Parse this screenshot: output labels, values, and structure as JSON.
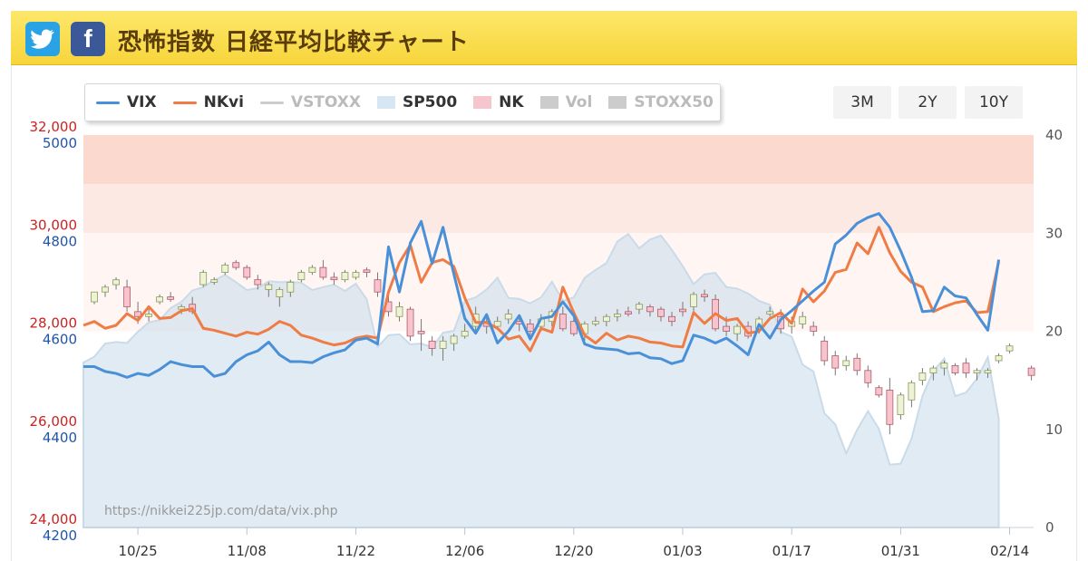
{
  "header": {
    "twitter_icon": "twitter-bird-icon",
    "facebook_icon": "facebook-f-icon",
    "title": "恐怖指数 日経平均比較チャート"
  },
  "range_buttons": [
    "3M",
    "2Y",
    "10Y"
  ],
  "legend": [
    {
      "label": "VIX",
      "color": "#4a90d9",
      "kind": "line",
      "active": true
    },
    {
      "label": "NKvi",
      "color": "#f07c45",
      "kind": "line",
      "active": true
    },
    {
      "label": "VSTOXX",
      "color": "#cccccc",
      "kind": "line",
      "active": false
    },
    {
      "label": "SP500",
      "color": "#d6e6f2",
      "kind": "box",
      "active": true
    },
    {
      "label": "NK",
      "color": "#f6c6cf",
      "kind": "box",
      "active": true
    },
    {
      "label": "Vol",
      "color": "#cccccc",
      "kind": "box",
      "active": false
    },
    {
      "label": "STOXX50",
      "color": "#cccccc",
      "kind": "box",
      "active": false
    }
  ],
  "chart_data": {
    "type": "line",
    "watermark": "https://nikkei225jp.com/data/vix.php",
    "x_ticks": [
      "10/25",
      "11/08",
      "11/22",
      "12/06",
      "12/20",
      "01/03",
      "01/17",
      "01/31",
      "02/14"
    ],
    "x_tick_positions": [
      5,
      15,
      25,
      35,
      45,
      55,
      65,
      75,
      85
    ],
    "x_range": [
      0,
      85
    ],
    "left_axis_nk": {
      "ticks": [
        "24,000",
        "26,000",
        "28,000",
        "30,000",
        "32,000"
      ],
      "values": [
        24000,
        26000,
        28000,
        30000,
        32000
      ],
      "color": "#cc2222"
    },
    "left_axis_sp500": {
      "ticks": [
        "4200",
        "4400",
        "4600",
        "4800",
        "5000"
      ],
      "values": [
        4200,
        4400,
        4600,
        4800,
        5000
      ],
      "color": "#2255aa"
    },
    "right_axis": {
      "ticks": [
        "0",
        "10",
        "20",
        "30",
        "40"
      ],
      "values": [
        0,
        10,
        20,
        30,
        40
      ],
      "ylim": [
        0,
        40
      ]
    },
    "zones": [
      {
        "from": 35,
        "to": 40,
        "color": "#fcd9cf"
      },
      {
        "from": 30,
        "to": 35,
        "color": "#fde9e3"
      },
      {
        "from": 20,
        "to": 30,
        "color": "#fff6f3"
      }
    ],
    "series": [
      {
        "name": "VIX",
        "color": "#4a90d9",
        "values": [
          16.4,
          16.4,
          15.9,
          15.7,
          15.3,
          15.7,
          15.5,
          16.1,
          16.9,
          16.6,
          16.4,
          16.4,
          15.4,
          15.7,
          16.9,
          17.6,
          18.0,
          18.9,
          17.6,
          16.9,
          16.9,
          16.8,
          17.4,
          17.8,
          18.1,
          19.1,
          19.3,
          18.7,
          28.6,
          24.0,
          29.0,
          31.2,
          26.9,
          30.6,
          25.8,
          21.3,
          19.8,
          21.7,
          18.8,
          20.0,
          21.6,
          19.2,
          21.3,
          21.5,
          23.0,
          21.6,
          18.7,
          18.3,
          18.2,
          18.1,
          17.7,
          17.8,
          17.3,
          17.2,
          16.7,
          17.0,
          19.6,
          19.3,
          18.8,
          19.3,
          18.5,
          17.6,
          20.7,
          19.3,
          21.2,
          22.1,
          23.1,
          24.1,
          25.0,
          28.9,
          29.8,
          31.0,
          31.6,
          32.0,
          30.6,
          28.2,
          25.5,
          22.0,
          22.1,
          24.5,
          23.6,
          23.4,
          21.7,
          20.1,
          27.3
        ]
      },
      {
        "name": "NKvi",
        "color": "#f07c45",
        "values": [
          20.6,
          21.0,
          20.3,
          20.6,
          21.8,
          21.1,
          22.5,
          21.3,
          21.4,
          22.1,
          22.3,
          20.3,
          20.1,
          19.8,
          19.5,
          19.9,
          19.7,
          20.2,
          21.0,
          20.6,
          19.6,
          19.3,
          18.9,
          18.6,
          18.8,
          19.3,
          19.5,
          19.3,
          24.0,
          27.0,
          28.8,
          25.0,
          27.0,
          27.3,
          26.6,
          23.4,
          20.9,
          20.9,
          20.3,
          19.2,
          19.5,
          18.0,
          20.3,
          19.9,
          24.5,
          21.9,
          19.6,
          18.8,
          19.8,
          19.1,
          19.5,
          19.3,
          18.9,
          18.8,
          18.5,
          18.4,
          21.9,
          20.8,
          21.8,
          21.1,
          21.3,
          19.8,
          20.0,
          21.3,
          21.9,
          20.8,
          24.3,
          23.0,
          24.1,
          26.0,
          26.3,
          29.0,
          27.9,
          30.6,
          28.0,
          26.1,
          25.0,
          24.5,
          22.0,
          22.5,
          22.9,
          23.1,
          21.9,
          22.0,
          27.1
        ]
      },
      {
        "name": "SP500",
        "color": "#dbe8f3",
        "values": [
          4536,
          4548,
          4575,
          4578,
          4576,
          4599,
          4618,
          4623,
          4647,
          4660,
          4683,
          4690,
          4704,
          4715,
          4700,
          4684,
          4688,
          4702,
          4700,
          4701,
          4699,
          4684,
          4690,
          4695,
          4682,
          4697,
          4665,
          4568,
          4592,
          4594,
          4573,
          4575,
          4567,
          4597,
          4601,
          4662,
          4669,
          4685,
          4709,
          4668,
          4666,
          4657,
          4669,
          4701,
          4662,
          4669,
          4709,
          4725,
          4739,
          4783,
          4798,
          4769,
          4787,
          4795,
          4766,
          4733,
          4696,
          4716,
          4719,
          4690,
          4687,
          4677,
          4662,
          4654,
          4599,
          4589,
          4532,
          4518,
          4433,
          4410,
          4351,
          4399,
          4437,
          4401,
          4328,
          4330,
          4381,
          4468,
          4519,
          4544,
          4468,
          4475,
          4503,
          4547,
          4422
        ]
      },
      {
        "name": "NK",
        "color": "#f6c6cf",
        "candles": [
          [
            1,
            28600,
            28800,
            28550,
            28800
          ],
          [
            2,
            28800,
            28950,
            28700,
            28900
          ],
          [
            3,
            28950,
            29100,
            28850,
            29050
          ],
          [
            4,
            28900,
            29050,
            28400,
            28500
          ],
          [
            5,
            28400,
            28600,
            28150,
            28300
          ],
          [
            6,
            28300,
            28500,
            28200,
            28350
          ],
          [
            7,
            28600,
            28750,
            28550,
            28700
          ],
          [
            8,
            28700,
            28800,
            28600,
            28650
          ],
          [
            9,
            28450,
            28550,
            28350,
            28500
          ],
          [
            10,
            28550,
            28700,
            28350,
            28400
          ],
          [
            11,
            28950,
            29250,
            28900,
            29200
          ],
          [
            12,
            29000,
            29100,
            28950,
            29050
          ],
          [
            13,
            29200,
            29400,
            29150,
            29350
          ],
          [
            14,
            29400,
            29450,
            29250,
            29300
          ],
          [
            15,
            29300,
            29350,
            29050,
            29100
          ],
          [
            16,
            29050,
            29150,
            28850,
            28950
          ],
          [
            17,
            28850,
            29000,
            28700,
            28950
          ],
          [
            18,
            28700,
            28900,
            28500,
            28850
          ],
          [
            19,
            28800,
            29050,
            28700,
            29000
          ],
          [
            20,
            29050,
            29250,
            29000,
            29200
          ],
          [
            21,
            29200,
            29350,
            29150,
            29300
          ],
          [
            22,
            29300,
            29450,
            29050,
            29100
          ],
          [
            23,
            29100,
            29200,
            28950,
            29050
          ],
          [
            24,
            29050,
            29250,
            29000,
            29200
          ],
          [
            25,
            29100,
            29250,
            29050,
            29200
          ],
          [
            26,
            29250,
            29300,
            29100,
            29200
          ],
          [
            27,
            29050,
            29200,
            28700,
            28800
          ],
          [
            28,
            28600,
            28750,
            28300,
            28400
          ],
          [
            29,
            28300,
            28600,
            28200,
            28500
          ],
          [
            30,
            28450,
            28500,
            27800,
            27900
          ],
          [
            31,
            28000,
            28250,
            27600,
            27950
          ],
          [
            32,
            27800,
            27900,
            27500,
            27650
          ],
          [
            33,
            27650,
            27900,
            27400,
            27800
          ],
          [
            34,
            27750,
            27950,
            27600,
            27900
          ],
          [
            35,
            27900,
            28150,
            27850,
            28000
          ],
          [
            36,
            28100,
            28500,
            28000,
            28350
          ],
          [
            37,
            28200,
            28350,
            27950,
            28100
          ],
          [
            38,
            28100,
            28300,
            28050,
            28200
          ],
          [
            39,
            28250,
            28450,
            28150,
            28350
          ],
          [
            40,
            28200,
            28300,
            28000,
            28150
          ],
          [
            41,
            28150,
            28250,
            27900,
            28000
          ],
          [
            42,
            28100,
            28350,
            28000,
            28250
          ],
          [
            43,
            28200,
            28450,
            28100,
            28400
          ],
          [
            44,
            28350,
            28500,
            28000,
            28050
          ],
          [
            45,
            28200,
            28300,
            27900,
            27950
          ],
          [
            46,
            27950,
            28200,
            27800,
            28150
          ],
          [
            47,
            28150,
            28300,
            28100,
            28200
          ],
          [
            48,
            28200,
            28350,
            28100,
            28300
          ],
          [
            49,
            28300,
            28450,
            28200,
            28350
          ],
          [
            50,
            28400,
            28500,
            28300,
            28350
          ],
          [
            51,
            28450,
            28600,
            28350,
            28550
          ],
          [
            52,
            28500,
            28550,
            28300,
            28400
          ],
          [
            53,
            28450,
            28500,
            28200,
            28300
          ],
          [
            54,
            28300,
            28400,
            28100,
            28200
          ],
          [
            55,
            28450,
            28600,
            28300,
            28400
          ],
          [
            56,
            28500,
            28800,
            28400,
            28750
          ],
          [
            57,
            28750,
            28850,
            28600,
            28700
          ],
          [
            58,
            28650,
            28750,
            28000,
            28050
          ],
          [
            59,
            28100,
            28300,
            27900,
            28000
          ],
          [
            60,
            27950,
            28150,
            27800,
            28100
          ],
          [
            61,
            28100,
            28200,
            27850,
            27900
          ],
          [
            62,
            28050,
            28300,
            27950,
            28250
          ],
          [
            63,
            28350,
            28500,
            28300,
            28400
          ],
          [
            64,
            28300,
            28450,
            27950,
            28050
          ],
          [
            65,
            28100,
            28300,
            27950,
            28200
          ],
          [
            66,
            28150,
            28400,
            28050,
            28300
          ],
          [
            67,
            28100,
            28200,
            27900,
            28000
          ],
          [
            68,
            27800,
            27900,
            27300,
            27400
          ],
          [
            69,
            27500,
            27600,
            27100,
            27250
          ],
          [
            70,
            27300,
            27500,
            27200,
            27400
          ],
          [
            71,
            27450,
            27550,
            27100,
            27200
          ],
          [
            72,
            27200,
            27300,
            26850,
            26950
          ],
          [
            73,
            26850,
            26900,
            26650,
            26700
          ],
          [
            74,
            26800,
            27050,
            25900,
            26100
          ],
          [
            75,
            26300,
            26750,
            26200,
            26700
          ],
          [
            76,
            26600,
            27000,
            26450,
            26950
          ],
          [
            77,
            27000,
            27250,
            26900,
            27150
          ],
          [
            78,
            27150,
            27300,
            27000,
            27250
          ],
          [
            79,
            27250,
            27400,
            27100,
            27350
          ],
          [
            80,
            27300,
            27350,
            27100,
            27150
          ],
          [
            81,
            27350,
            27450,
            27050,
            27150
          ],
          [
            82,
            27150,
            27250,
            27000,
            27200
          ],
          [
            83,
            27150,
            27250,
            27050,
            27200
          ],
          [
            84,
            27400,
            27550,
            27350,
            27500
          ],
          [
            85,
            27600,
            27750,
            27550,
            27700
          ],
          [
            87,
            27250,
            27300,
            27000,
            27100
          ]
        ]
      }
    ]
  }
}
